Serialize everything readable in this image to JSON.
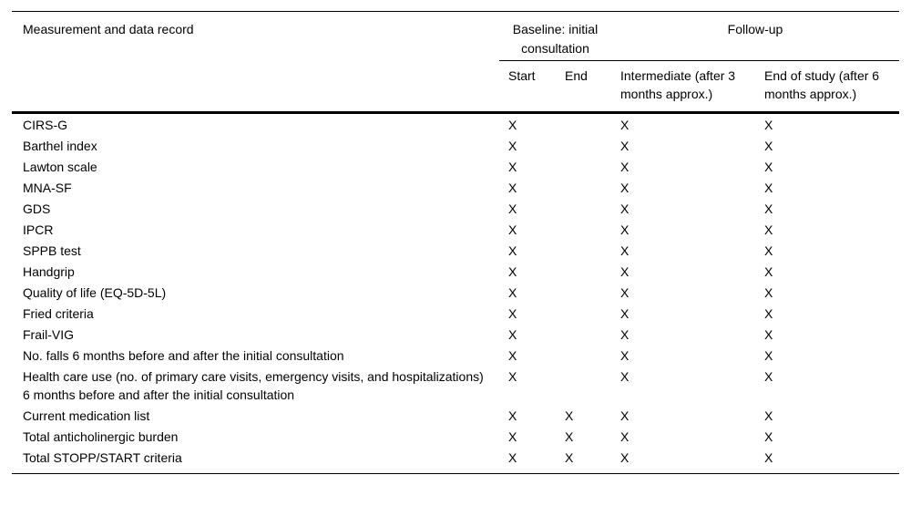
{
  "page": {
    "background_color": "#ffffff",
    "text_color": "#000000"
  },
  "table": {
    "header": {
      "measurement_col": "Measurement and data record",
      "baseline_group": "Baseline: initial consultation",
      "followup_group": "Follow-up",
      "subcolumns": [
        "Start",
        "End",
        "Intermediate (after 3 months approx.)",
        "End of study (after 6 months approx.)"
      ]
    },
    "mark_symbol": "X",
    "rows": [
      {
        "label": "CIRS-G",
        "marks": [
          "X",
          "",
          "X",
          "X"
        ]
      },
      {
        "label": "Barthel index",
        "marks": [
          "X",
          "",
          "X",
          "X"
        ]
      },
      {
        "label": "Lawton scale",
        "marks": [
          "X",
          "",
          "X",
          "X"
        ]
      },
      {
        "label": "MNA-SF",
        "marks": [
          "X",
          "",
          "X",
          "X"
        ]
      },
      {
        "label": "GDS",
        "marks": [
          "X",
          "",
          "X",
          "X"
        ]
      },
      {
        "label": "IPCR",
        "marks": [
          "X",
          "",
          "X",
          "X"
        ]
      },
      {
        "label": "SPPB test",
        "marks": [
          "X",
          "",
          "X",
          "X"
        ]
      },
      {
        "label": "Handgrip",
        "marks": [
          "X",
          "",
          "X",
          "X"
        ]
      },
      {
        "label": "Quality of life (EQ-5D-5L)",
        "marks": [
          "X",
          "",
          "X",
          "X"
        ]
      },
      {
        "label": "Fried criteria",
        "marks": [
          "X",
          "",
          "X",
          "X"
        ]
      },
      {
        "label": "Frail-VIG",
        "marks": [
          "X",
          "",
          "X",
          "X"
        ]
      },
      {
        "label": "No. falls 6 months before and after the initial consultation",
        "marks": [
          "X",
          "",
          "X",
          "X"
        ]
      },
      {
        "label": "Health care use (no. of primary care visits, emergency visits, and hospitalizations) 6 months before and after the initial consultation",
        "marks": [
          "X",
          "",
          "X",
          "X"
        ]
      },
      {
        "label": "Current medication list",
        "marks": [
          "X",
          "X",
          "X",
          "X"
        ]
      },
      {
        "label": "Total anticholinergic burden",
        "marks": [
          "X",
          "X",
          "X",
          "X"
        ]
      },
      {
        "label": "Total STOPP/START criteria",
        "marks": [
          "X",
          "X",
          "X",
          "X"
        ]
      }
    ]
  }
}
